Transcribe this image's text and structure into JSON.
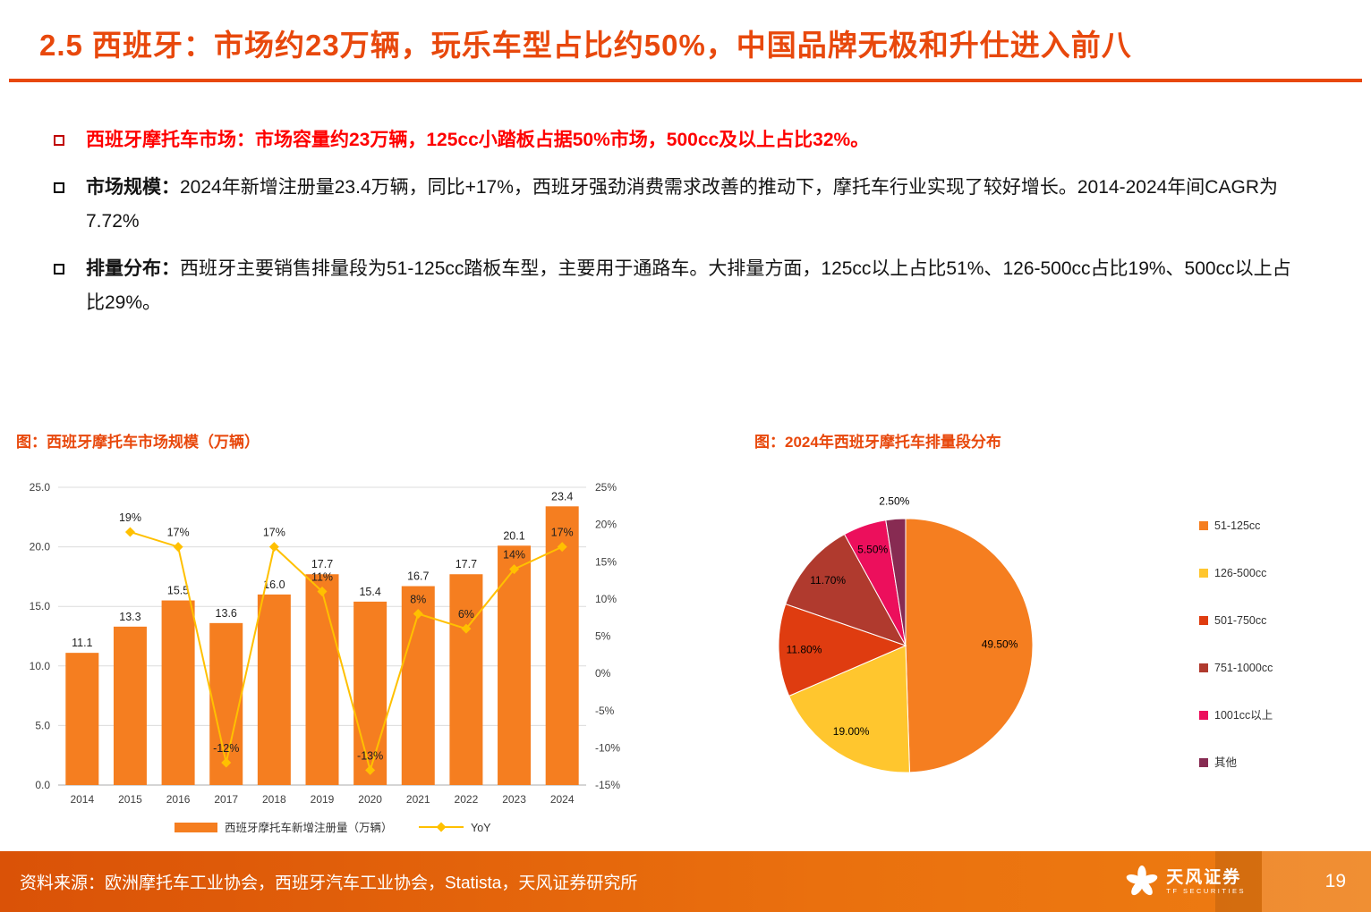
{
  "page": {
    "title": "2.5 西班牙：市场约23万辆，玩乐车型占比约50%，中国品牌无极和升仕进入前八"
  },
  "colors": {
    "accent": "#E8480C",
    "red_text": "#FE0000",
    "bar": "#F57E20",
    "line": "#FFC000"
  },
  "bullets": [
    {
      "emphasis": "",
      "text": "西班牙摩托车市场：市场容量约23万辆，125cc小踏板占据50%市场，500cc及以上占比32%。"
    },
    {
      "emphasis": "市场规模：",
      "text": "2024年新增注册量23.4万辆，同比+17%，西班牙强劲消费需求改善的推动下，摩托车行业实现了较好增长。2014-2024年间CAGR为7.72%"
    },
    {
      "emphasis": "排量分布：",
      "text": "西班牙主要销售排量段为51-125cc踏板车型，主要用于通路车。大排量方面，125cc以上占比51%、126-500cc占比19%、500cc以上占比29%。"
    }
  ],
  "charts": {
    "left_title": "图：西班牙摩托车市场规模（万辆）",
    "right_title": "图：2024年西班牙摩托车排量段分布"
  },
  "chart_data": [
    {
      "type": "bar",
      "title": "西班牙摩托车市场规模（万辆）",
      "categories": [
        "2014",
        "2015",
        "2016",
        "2017",
        "2018",
        "2019",
        "2020",
        "2021",
        "2022",
        "2023",
        "2024"
      ],
      "series": [
        {
          "name": "西班牙摩托车新增注册量（万辆）",
          "kind": "bar",
          "values": [
            11.1,
            13.3,
            15.5,
            13.6,
            16.0,
            17.7,
            15.4,
            16.7,
            17.7,
            20.1,
            23.4
          ],
          "color": "#F57E20"
        },
        {
          "name": "YoY",
          "kind": "line",
          "values": [
            null,
            19,
            17,
            -12,
            17,
            11,
            -13,
            8,
            6,
            14,
            17
          ],
          "unit": "%",
          "color": "#FFC000"
        }
      ],
      "left_axis": {
        "min": 0,
        "max": 25,
        "step": 5,
        "labels": [
          "0.0",
          "5.0",
          "10.0",
          "15.0",
          "20.0",
          "25.0"
        ]
      },
      "right_axis": {
        "min": -15,
        "max": 25,
        "step": 5,
        "labels": [
          "-15%",
          "-10%",
          "-5%",
          "0%",
          "5%",
          "10%",
          "15%",
          "20%",
          "25%"
        ]
      },
      "grid": true,
      "legend_position": "bottom"
    },
    {
      "type": "pie",
      "title": "2024年西班牙摩托车排量段分布",
      "legend_position": "right",
      "slices": [
        {
          "label": "51-125cc",
          "value": 49.5,
          "display": "49.50%",
          "color": "#F57E20"
        },
        {
          "label": "126-500cc",
          "value": 19.0,
          "display": "19.00%",
          "color": "#FFC62E"
        },
        {
          "label": "501-750cc",
          "value": 11.8,
          "display": "11.80%",
          "color": "#DF3C10"
        },
        {
          "label": "751-1000cc",
          "value": 11.7,
          "display": "11.70%",
          "color": "#B03A2E"
        },
        {
          "label": "1001cc以上",
          "value": 5.5,
          "display": "5.50%",
          "color": "#EC0F5C"
        },
        {
          "label": "其他",
          "value": 2.5,
          "display": "2.50%",
          "color": "#872B52"
        }
      ]
    }
  ],
  "footer": {
    "source": "资料来源：欧洲摩托车工业协会，西班牙汽车工业协会，Statista，天风证券研究所",
    "logo_text": "天风证券",
    "logo_sub": "TF SECURITIES",
    "page_number": "19"
  }
}
